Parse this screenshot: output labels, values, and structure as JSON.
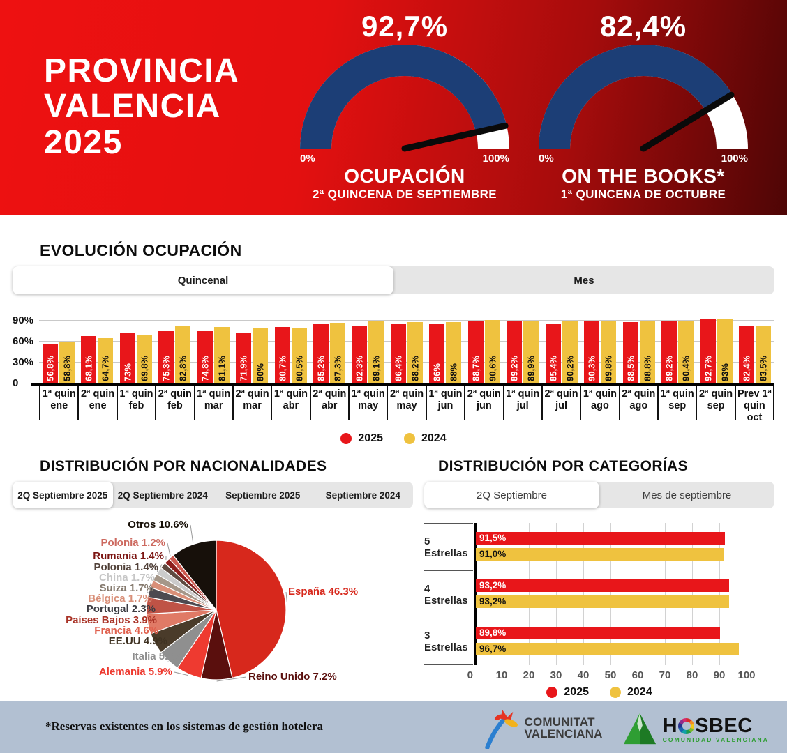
{
  "header": {
    "title_lines": [
      "PROVINCIA",
      "VALENCIA",
      "2025"
    ],
    "gauges": [
      {
        "value": 92.7,
        "value_label": "92,7%",
        "min_label": "0%",
        "max_label": "100%",
        "title": "OCUPACIÓN",
        "subtitle": "2ª QUINCENA DE SEPTIEMBRE"
      },
      {
        "value": 82.4,
        "value_label": "82,4%",
        "min_label": "0%",
        "max_label": "100%",
        "title": "ON THE BOOKS*",
        "subtitle": "1ª QUINCENA DE OCTUBRE"
      }
    ]
  },
  "colors": {
    "red_2025": "#e8161a",
    "yellow_2024": "#efc23f",
    "gauge_blue": "#1c3e76"
  },
  "evolution": {
    "heading": "EVOLUCIÓN OCUPACIÓN",
    "tabs": [
      {
        "label": "Quincenal",
        "active": true
      },
      {
        "label": "Mes",
        "active": false
      }
    ],
    "chart_data": {
      "type": "bar",
      "categories": [
        "1ª quin ene",
        "2ª quin ene",
        "1ª quin feb",
        "2ª quin feb",
        "1ª quin mar",
        "2ª quin mar",
        "1ª quin abr",
        "2ª quin abr",
        "1ª quin may",
        "2ª quin may",
        "1ª quin jun",
        "2ª quin jun",
        "1ª quin jul",
        "2ª quin jul",
        "1ª quin ago",
        "2ª quin ago",
        "1ª quin sep",
        "2ª quin sep",
        "Prev 1ª quin oct"
      ],
      "series": [
        {
          "name": "2025",
          "color": "#e8161a",
          "text_color": "#ffffff",
          "values": [
            56.8,
            68.1,
            73,
            75.3,
            74.8,
            71.9,
            80.7,
            85.2,
            82.3,
            86.4,
            86,
            88.7,
            89.2,
            85.4,
            90.3,
            88.5,
            89.2,
            92.7,
            82.4
          ],
          "labels": [
            "56,8%",
            "68,1%",
            "73%",
            "75,3%",
            "74,8%",
            "71,9%",
            "80,7%",
            "85,2%",
            "82,3%",
            "86,4%",
            "86%",
            "88,7%",
            "89,2%",
            "85,4%",
            "90,3%",
            "88,5%",
            "89,2%",
            "92,7%",
            "82,4%"
          ]
        },
        {
          "name": "2024",
          "color": "#efc23f",
          "text_color": "#111111",
          "values": [
            58.8,
            64.7,
            69.8,
            82.8,
            81.1,
            80,
            80.5,
            87.3,
            89.1,
            88.2,
            88,
            90.6,
            89.9,
            90.2,
            89.8,
            88.8,
            90.4,
            93,
            83.5
          ],
          "labels": [
            "58,8%",
            "64,7%",
            "69,8%",
            "82,8%",
            "81,1%",
            "80%",
            "80,5%",
            "87,3%",
            "89,1%",
            "88,2%",
            "88%",
            "90,6%",
            "89,9%",
            "90,2%",
            "89,8%",
            "88,8%",
            "90,4%",
            "93%",
            "83,5%"
          ]
        }
      ],
      "y_ticks": [
        "90%",
        "60%",
        "30%",
        "0"
      ],
      "ylim": [
        0,
        100
      ],
      "legend": [
        "2025",
        "2024"
      ],
      "legend_position": "bottom-center",
      "grid": true
    }
  },
  "nationalities": {
    "heading": "DISTRIBUCIÓN POR NACIONALIDADES",
    "tabs": [
      {
        "label": "2Q Septiembre 2025",
        "active": true
      },
      {
        "label": "2Q Septiembre 2024",
        "active": false
      },
      {
        "label": "Septiembre 2025",
        "active": false
      },
      {
        "label": "Septiembre 2024",
        "active": false
      }
    ],
    "chart_data": {
      "type": "pie",
      "slices": [
        {
          "label": "España",
          "value": 46.3,
          "text": "España 46.3%",
          "color": "#d7281c",
          "label_color": "#d7281c"
        },
        {
          "label": "Reino Unido",
          "value": 7.2,
          "text": "Reino Unido 7.2%",
          "color": "#5a0f0d",
          "label_color": "#5a0f0d"
        },
        {
          "label": "Alemania",
          "value": 5.9,
          "text": "Alemania 5.9%",
          "color": "#ee3a30",
          "label_color": "#ee3a30"
        },
        {
          "label": "Italia",
          "value": 5.2,
          "text": "Italia 5.2%",
          "color": "#8f8f8f",
          "label_color": "#8f8f8f"
        },
        {
          "label": "EE.UU",
          "value": 4.9,
          "text": "EE.UU 4.9%",
          "color": "#4a3b2a",
          "label_color": "#3f3222"
        },
        {
          "label": "Francia",
          "value": 4.6,
          "text": "Francia 4.6%",
          "color": "#e07a66",
          "label_color": "#e0614e"
        },
        {
          "label": "Países Bajos",
          "value": 3.9,
          "text": "Países Bajos 3.9%",
          "color": "#bf5346",
          "label_color": "#a93327"
        },
        {
          "label": "Portugal",
          "value": 2.3,
          "text": "Portugal 2.3%",
          "color": "#4d4a50",
          "label_color": "#3c3c42"
        },
        {
          "label": "Bélgica",
          "value": 1.7,
          "text": "Bélgica 1.7%",
          "color": "#d98f78",
          "label_color": "#d98f78"
        },
        {
          "label": "Suiza",
          "value": 1.7,
          "text": "Suiza 1.7%",
          "color": "#a59789",
          "label_color": "#857a6e"
        },
        {
          "label": "China",
          "value": 1.7,
          "text": "China 1.7%",
          "color": "#cbcbcb",
          "label_color": "#c6c6c6"
        },
        {
          "label": "Polonia",
          "value": 1.4,
          "text": "Polonia 1.4%",
          "color": "#5e4a40",
          "label_color": "#52423a"
        },
        {
          "label": "Rumania",
          "value": 1.4,
          "text": "Rumania 1.4%",
          "color": "#8e1e1c",
          "label_color": "#7c1512"
        },
        {
          "label": "Polonia",
          "value": 1.2,
          "text": "Polonia 1.2%",
          "color": "#ce5a50",
          "label_color": "#cd6a60"
        },
        {
          "label": "Otros",
          "value": 10.6,
          "text": "Otros 10.6%",
          "color": "#17100a",
          "label_color": "#171007"
        }
      ]
    }
  },
  "categories": {
    "heading": "DISTRIBUCIÓN POR CATEGORÍAS",
    "tabs": [
      {
        "label": "2Q Septiembre",
        "active": true
      },
      {
        "label": "Mes de septiembre",
        "active": false
      }
    ],
    "chart_data": {
      "type": "bar",
      "orientation": "horizontal",
      "categories": [
        "5 Estrellas",
        "4 Estrellas",
        "3 Estrellas"
      ],
      "series": [
        {
          "name": "2025",
          "color": "#e8161a",
          "text_color": "#ffffff",
          "values": [
            91.5,
            93.2,
            89.8
          ],
          "labels": [
            "91,5%",
            "93,2%",
            "89,8%"
          ]
        },
        {
          "name": "2024",
          "color": "#efc23f",
          "text_color": "#111111",
          "values": [
            91.0,
            93.2,
            96.7
          ],
          "labels": [
            "91,0%",
            "93,2%",
            "96,7%"
          ]
        }
      ],
      "x_ticks": [
        "0",
        "10",
        "20",
        "30",
        "40",
        "50",
        "60",
        "70",
        "80",
        "90",
        "100"
      ],
      "xlim": [
        0,
        100
      ],
      "legend": [
        "2025",
        "2024"
      ],
      "legend_position": "bottom-center",
      "grid": true
    }
  },
  "footer": {
    "note": "*Reservas existentes en los sistemas de gestión hotelera",
    "logo_comunitat": {
      "line1": "COMUNITAT",
      "line2": "VALENCIANA"
    },
    "logo_hosbec": {
      "name_start": "H",
      "name_end": "SBEC",
      "subtitle": "COMUNIDAD VALENCIANA"
    }
  }
}
